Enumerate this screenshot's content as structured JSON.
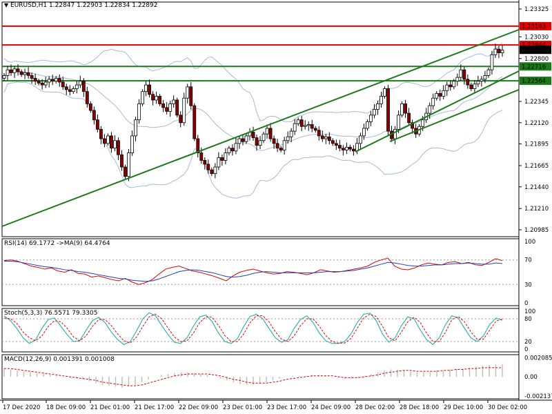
{
  "header": {
    "symbol": "EURUSD,H1",
    "ohlc": "1.22847 1.22903 1.22834 1.22892"
  },
  "indicators": {
    "rsi_label": "RSI(14) 69.1772  ->MA(9) 64.4764",
    "stoch_label": "Stoch(5,3,3) 76.5571 79.3305",
    "macd_label": "MACD(12,26,9) 0.001391 0.001008"
  },
  "colors": {
    "candle_up": "#ffffff",
    "candle_down": "#8b0000",
    "wick": "#000000",
    "bollinger": "#a8b8d8",
    "trendline": "#1a7a1a",
    "resistance": "#e00000",
    "level_green": "#1a7a1a",
    "rsi_line": "#e00000",
    "rsi_ma": "#1f3fbf",
    "stoch_main": "#3ab0b0",
    "stoch_signal": "#e00000",
    "macd_hist": "#c0c0c0",
    "macd_signal": "#e00000"
  },
  "chart_data": [
    {
      "type": "candlestick",
      "title": "EURUSD,H1",
      "ylim": [
        1.20985,
        1.23325
      ],
      "y_ticks": [
        "1.23325",
        "1.23030",
        "1.22800",
        "1.22345",
        "1.22120",
        "1.21895",
        "1.21665",
        "1.21440",
        "1.21210",
        "1.20985"
      ],
      "x_ticks": [
        "17 Dec 2020",
        "18 Dec 09:00",
        "21 Dec 01:00",
        "21 Dec 17:00",
        "22 Dec 09:00",
        "23 Dec 01:00",
        "23 Dec 17:00",
        "24 Dec 09:00",
        "28 Dec 02:00",
        "28 Dec 18:00",
        "29 Dec 10:00",
        "30 Dec 02:00"
      ],
      "price_labels": [
        {
          "value": "1.23143",
          "color": "#e00000"
        },
        {
          "value": "1.22944",
          "color": "#e00000"
        },
        {
          "value": "1.22892",
          "color": "#000000"
        },
        {
          "value": "1.22716",
          "color": "#1a7a1a"
        },
        {
          "value": "1.22564",
          "color": "#1a7a1a"
        }
      ],
      "horizontal_levels": [
        1.23143,
        1.22944,
        1.22716,
        1.22564
      ],
      "close": [
        1.2262,
        1.2268,
        1.2265,
        1.2269,
        1.2266,
        1.2263,
        1.2265,
        1.2262,
        1.2259,
        1.2256,
        1.2254,
        1.2252,
        1.2255,
        1.2258,
        1.2256,
        1.2259,
        1.2255,
        1.225,
        1.2247,
        1.2245,
        1.2248,
        1.2252,
        1.2256,
        1.2245,
        1.2232,
        1.2225,
        1.2215,
        1.2205,
        1.2195,
        1.219,
        1.2198,
        1.2185,
        1.2193,
        1.2178,
        1.2165,
        1.2155,
        1.218,
        1.2198,
        1.2215,
        1.2232,
        1.2245,
        1.2252,
        1.2242,
        1.2236,
        1.224,
        1.2232,
        1.2228,
        1.2224,
        1.2232,
        1.2236,
        1.222,
        1.2212,
        1.2238,
        1.225,
        1.223,
        1.2195,
        1.218,
        1.2172,
        1.2168,
        1.2162,
        1.2158,
        1.2165,
        1.2175,
        1.2172,
        1.218,
        1.2185,
        1.2182,
        1.219,
        1.2195,
        1.2192,
        1.2198,
        1.2202,
        1.2196,
        1.2188,
        1.2193,
        1.22,
        1.2206,
        1.2195,
        1.219,
        1.2185,
        1.2183,
        1.2193,
        1.2197,
        1.2203,
        1.2211,
        1.2215,
        1.2208,
        1.2209,
        1.221,
        1.2206,
        1.2204,
        1.2198,
        1.2195,
        1.2197,
        1.2193,
        1.219,
        1.2188,
        1.2185,
        1.2183,
        1.2186,
        1.2184,
        1.2182,
        1.219,
        1.2198,
        1.2206,
        1.2213,
        1.222,
        1.2226,
        1.2232,
        1.224,
        1.2248,
        1.2203,
        1.2195,
        1.2205,
        1.222,
        1.2232,
        1.2222,
        1.2212,
        1.2206,
        1.22,
        1.2208,
        1.2215,
        1.2222,
        1.223,
        1.2238,
        1.2243,
        1.224,
        1.2246,
        1.2252,
        1.225,
        1.2256,
        1.226,
        1.2268,
        1.2258,
        1.2252,
        1.2248,
        1.2253,
        1.2256,
        1.2258,
        1.2262,
        1.2268,
        1.2284,
        1.229,
        1.2286,
        1.2289
      ]
    },
    {
      "type": "line",
      "title": "RSI(14)",
      "ylim": [
        0,
        100
      ],
      "y_ticks": [
        "100",
        "70",
        "30",
        "0"
      ],
      "series": [
        {
          "name": "RSI(14)",
          "values": [
            69,
            70,
            68,
            64,
            60,
            58,
            55,
            57,
            52,
            50,
            54,
            48,
            47,
            42,
            44,
            41,
            38,
            36,
            40,
            34,
            30,
            33,
            38,
            47,
            55,
            58,
            60,
            56,
            52,
            50,
            47,
            44,
            40,
            36,
            44,
            50,
            53,
            55,
            52,
            49,
            47,
            48,
            51,
            50,
            48,
            46,
            49,
            54,
            52,
            50,
            51,
            53,
            55,
            57,
            60,
            66,
            70,
            73,
            60,
            55,
            54,
            57,
            62,
            65,
            63,
            62,
            66,
            67,
            64,
            66,
            62,
            61,
            66,
            72,
            69
          ]
        },
        {
          "name": "MA(9)",
          "values": [
            68,
            68,
            67,
            65,
            63,
            61,
            59,
            58,
            56,
            54,
            53,
            51,
            50,
            48,
            46,
            44,
            42,
            40,
            39,
            37,
            36,
            35,
            36,
            39,
            43,
            47,
            51,
            53,
            54,
            53,
            51,
            49,
            46,
            43,
            42,
            43,
            45,
            48,
            50,
            51,
            50,
            49,
            49,
            49,
            49,
            49,
            49,
            50,
            51,
            51,
            51,
            52,
            53,
            55,
            57,
            60,
            63,
            66,
            65,
            63,
            61,
            60,
            60,
            61,
            62,
            62,
            63,
            64,
            64,
            65,
            64,
            63,
            63,
            65,
            64
          ]
        }
      ]
    },
    {
      "type": "line",
      "title": "Stoch(5,3,3)",
      "ylim": [
        0,
        100
      ],
      "y_ticks": [
        "100",
        "80",
        "20",
        "0"
      ],
      "series": [
        {
          "name": "Stoch main",
          "values": [
            88,
            75,
            55,
            30,
            15,
            25,
            55,
            78,
            82,
            60,
            38,
            20,
            22,
            50,
            75,
            84,
            70,
            45,
            25,
            12,
            20,
            48,
            80,
            96,
            88,
            62,
            38,
            18,
            15,
            30,
            60,
            85,
            90,
            72,
            42,
            20,
            15,
            28,
            60,
            86,
            92,
            80,
            55,
            30,
            18,
            25,
            55,
            78,
            88,
            70,
            42,
            22,
            15,
            15,
            20,
            40,
            70,
            92,
            95,
            75,
            40,
            18,
            30,
            62,
            85,
            80,
            50,
            25,
            12,
            30,
            65,
            88,
            82,
            55,
            30,
            20,
            35,
            65,
            82,
            76
          ]
        },
        {
          "name": "Stoch signal",
          "values": [
            82,
            80,
            68,
            45,
            30,
            22,
            35,
            60,
            75,
            72,
            55,
            32,
            22,
            35,
            60,
            78,
            78,
            62,
            40,
            22,
            16,
            32,
            60,
            85,
            92,
            80,
            55,
            32,
            20,
            22,
            42,
            70,
            85,
            84,
            62,
            36,
            20,
            20,
            40,
            70,
            88,
            88,
            72,
            46,
            26,
            20,
            35,
            62,
            80,
            80,
            60,
            36,
            20,
            16,
            16,
            28,
            55,
            82,
            92,
            86,
            60,
            30,
            22,
            45,
            72,
            84,
            70,
            42,
            20,
            20,
            45,
            78,
            86,
            72,
            46,
            26,
            26,
            50,
            74,
            79
          ]
        }
      ]
    },
    {
      "type": "bar",
      "title": "MACD(12,26,9)",
      "ylim": [
        -0.00213,
        0.00213
      ],
      "y_ticks": [
        "0.002085",
        "0.00",
        "-0.002137"
      ],
      "series": [
        {
          "name": "MACD",
          "values": [
            0.0009,
            0.0008,
            0.0007,
            0.0006,
            0.0005,
            0.0004,
            0.0003,
            0.0002,
            0.0001,
            0.0,
            -0.0001,
            -0.0002,
            -0.0003,
            -0.0005,
            -0.0007,
            -0.0009,
            -0.001,
            -0.0011,
            -0.0012,
            -0.0011,
            -0.0009,
            -0.0006,
            -0.0003,
            0.0,
            0.0002,
            0.0003,
            0.0004,
            0.0005,
            0.0005,
            0.0004,
            0.0003,
            0.0002,
            0.0,
            -0.0002,
            -0.0004,
            -0.0006,
            -0.0008,
            -0.0009,
            -0.0009,
            -0.0008,
            -0.0006,
            -0.0004,
            -0.0002,
            0.0,
            0.0001,
            0.0001,
            0.0001,
            0.0002,
            0.0002,
            0.0001,
            0.0,
            -0.0001,
            -0.0002,
            -0.0002,
            -0.0001,
            0.0001,
            0.0003,
            0.0005,
            0.0007,
            0.0008,
            0.0008,
            0.0007,
            0.0006,
            0.0005,
            0.0005,
            0.0006,
            0.0007,
            0.0007,
            0.0008,
            0.0009,
            0.0009,
            0.001,
            0.0011,
            0.0012,
            0.0013,
            0.0014,
            0.0014
          ]
        },
        {
          "name": "Signal",
          "values": [
            0.0009,
            0.0009,
            0.0008,
            0.0007,
            0.0006,
            0.0005,
            0.0004,
            0.0003,
            0.0002,
            0.0001,
            0.0,
            -0.0001,
            -0.0002,
            -0.0003,
            -0.0004,
            -0.0006,
            -0.0007,
            -0.0008,
            -0.0009,
            -0.001,
            -0.001,
            -0.0009,
            -0.0007,
            -0.0005,
            -0.0003,
            -0.0001,
            0.0001,
            0.0002,
            0.0003,
            0.0003,
            0.0003,
            0.0003,
            0.0002,
            0.0001,
            -0.0001,
            -0.0003,
            -0.0004,
            -0.0006,
            -0.0007,
            -0.0007,
            -0.0007,
            -0.0006,
            -0.0005,
            -0.0003,
            -0.0002,
            -0.0001,
            0.0,
            0.0001,
            0.0001,
            0.0001,
            0.0001,
            0.0,
            -0.0001,
            -0.0001,
            -0.0001,
            0.0,
            0.0001,
            0.0002,
            0.0004,
            0.0005,
            0.0006,
            0.0007,
            0.0007,
            0.0006,
            0.0006,
            0.0006,
            0.0006,
            0.0007,
            0.0007,
            0.0008,
            0.0008,
            0.0009,
            0.0009,
            0.001,
            0.001,
            0.001,
            0.001
          ]
        }
      ]
    }
  ]
}
